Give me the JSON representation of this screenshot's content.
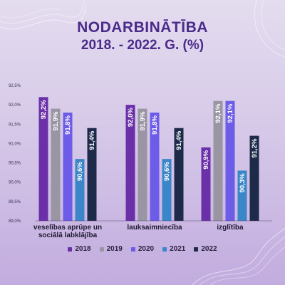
{
  "title": {
    "line1": "NODARBINĀTĪBA",
    "line2": "2018. - 2022. G. (%)"
  },
  "chart_data": {
    "type": "bar",
    "categories": [
      "veselības aprūpe un sociālā labklājība",
      "lauksaimniecība",
      "izglītība"
    ],
    "category_lines": [
      [
        "veselības aprūpe un",
        "sociālā labklājība"
      ],
      [
        "lauksaimniecība"
      ],
      [
        "izglītība"
      ]
    ],
    "series": [
      {
        "name": "2018",
        "color": "#6b2fa8",
        "values": [
          92.2,
          92.0,
          90.9
        ],
        "labels": [
          "92,2%",
          "92,0%",
          "90,9%"
        ]
      },
      {
        "name": "2019",
        "color": "#9a95a3",
        "values": [
          91.9,
          91.9,
          92.1
        ],
        "labels": [
          "91,9%",
          "91,9%",
          "92,1%"
        ]
      },
      {
        "name": "2020",
        "color": "#6c5ce7",
        "values": [
          91.8,
          91.8,
          92.1
        ],
        "labels": [
          "91,8%",
          "91,8%",
          "92,1%"
        ]
      },
      {
        "name": "2021",
        "color": "#3a86c8",
        "values": [
          90.6,
          90.6,
          90.3
        ],
        "labels": [
          "90,6%",
          "90,6%",
          "90,3%"
        ]
      },
      {
        "name": "2022",
        "color": "#1e2a4a",
        "values": [
          91.4,
          91.4,
          91.2
        ],
        "labels": [
          "91,4%",
          "91,4%",
          "91,2%"
        ]
      }
    ],
    "ylim": [
      89.0,
      92.5
    ],
    "yticks": [
      {
        "value": 89.0,
        "label": "89,0%"
      },
      {
        "value": 89.5,
        "label": "89,5%"
      },
      {
        "value": 90.0,
        "label": "90,0%"
      },
      {
        "value": 90.5,
        "label": "90,5%"
      },
      {
        "value": 91.0,
        "label": "91,0%"
      },
      {
        "value": 91.5,
        "label": "91,5%"
      },
      {
        "value": 92.0,
        "label": "92,0%"
      },
      {
        "value": 92.5,
        "label": "92,5%"
      }
    ],
    "grid": false,
    "legend_position": "bottom"
  }
}
